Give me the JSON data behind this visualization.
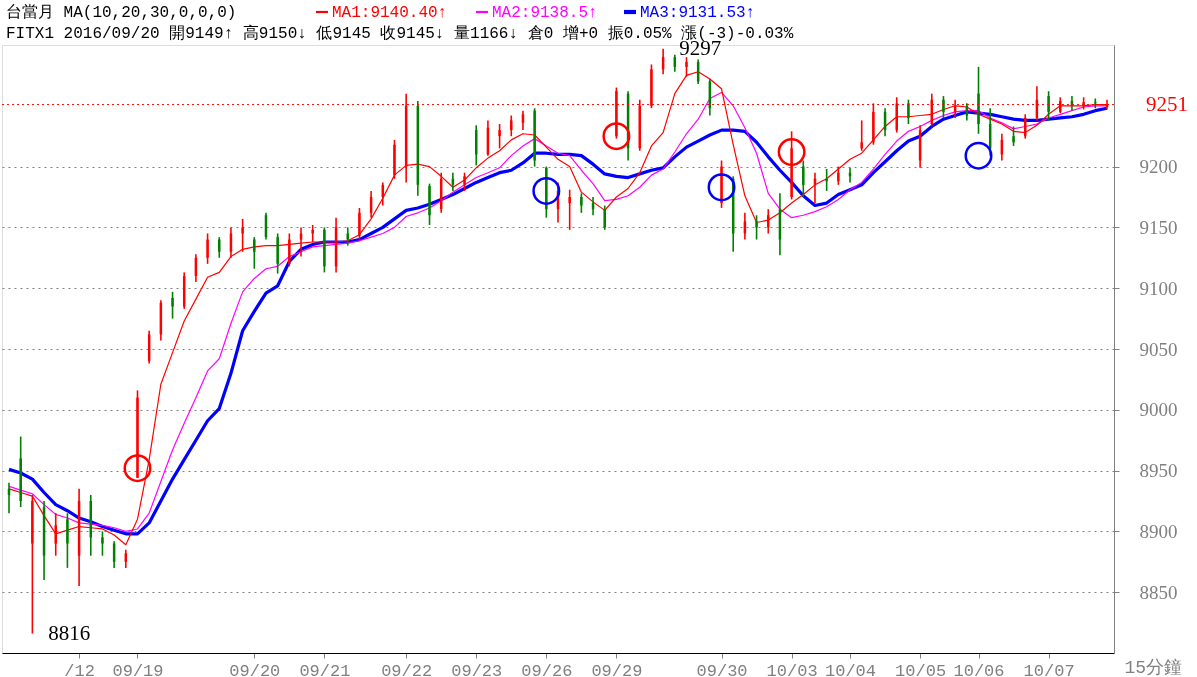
{
  "chart_data": {
    "type": "candlestick",
    "title": "台當月 MA(10,20,30,0,0,0)",
    "subtitle": "FITX1 2016/09/20 開9149↑ 高9150↓ 低9145 收9145↓ 量1166↓ 倉0 增+0 振0.05% 漲(-3)-0.03%",
    "xlabel": "15分鐘",
    "categories": [
      null,
      null,
      null,
      null,
      null,
      null,
      "/12",
      null,
      null,
      null,
      null,
      "09/19",
      null,
      null,
      null,
      null,
      null,
      null,
      null,
      null,
      null,
      "09/20",
      null,
      null,
      null,
      null,
      null,
      "09/21",
      null,
      null,
      null,
      null,
      null,
      null,
      "09/22",
      null,
      null,
      null,
      null,
      null,
      "09/23",
      null,
      null,
      null,
      null,
      null,
      "09/26",
      null,
      null,
      null,
      null,
      null,
      "09/29",
      null,
      null,
      null,
      null,
      null,
      null,
      null,
      null,
      "09/30",
      null,
      null,
      null,
      null,
      null,
      "10/03",
      null,
      null,
      null,
      null,
      "10/04",
      null,
      null,
      null,
      null,
      null,
      "10/05",
      null,
      null,
      null,
      null,
      "10/06",
      null,
      null,
      null,
      null,
      null,
      "10/07",
      null,
      null,
      null,
      null,
      null
    ],
    "ohlc": [
      [
        8935,
        8940,
        8915,
        8930
      ],
      [
        8960,
        8978,
        8920,
        8925
      ],
      [
        8890,
        8930,
        8816,
        8925
      ],
      [
        8920,
        8925,
        8860,
        8880
      ],
      [
        8890,
        8915,
        8880,
        8905
      ],
      [
        8910,
        8915,
        8870,
        8890
      ],
      [
        8880,
        8935,
        8855,
        8925
      ],
      [
        8925,
        8930,
        8880,
        8895
      ],
      [
        8895,
        8900,
        8880,
        8890
      ],
      [
        8890,
        8892,
        8870,
        8875
      ],
      [
        8875,
        8885,
        8870,
        8882
      ],
      [
        8944,
        9016,
        8944,
        9010
      ],
      [
        9040,
        9065,
        9038,
        9062
      ],
      [
        9062,
        9090,
        9057,
        9088
      ],
      [
        9092,
        9097,
        9075,
        9085
      ],
      [
        9085,
        9113,
        9083,
        9110
      ],
      [
        9110,
        9128,
        9105,
        9125
      ],
      [
        9125,
        9145,
        9120,
        9140
      ],
      [
        9140,
        9142,
        9125,
        9130
      ],
      [
        9130,
        9150,
        9125,
        9145
      ],
      [
        9145,
        9157,
        9130,
        9150
      ],
      [
        9140,
        9142,
        9116,
        9130
      ],
      [
        9160,
        9162,
        9140,
        9142
      ],
      [
        9142,
        9145,
        9112,
        9120
      ],
      [
        9120,
        9145,
        9118,
        9140
      ],
      [
        9140,
        9150,
        9126,
        9145
      ],
      [
        9145,
        9152,
        9138,
        9148
      ],
      [
        9148,
        9150,
        9113,
        9118
      ],
      [
        9118,
        9158,
        9113,
        9150
      ],
      [
        9145,
        9150,
        9135,
        9140
      ],
      [
        9143,
        9166,
        9140,
        9162
      ],
      [
        9162,
        9180,
        9158,
        9175
      ],
      [
        9175,
        9187,
        9168,
        9185
      ],
      [
        9193,
        9222,
        9190,
        9218
      ],
      [
        9200,
        9260,
        9187,
        9250
      ],
      [
        9250,
        9254,
        9176,
        9185
      ],
      [
        9184,
        9186,
        9152,
        9160
      ],
      [
        9165,
        9195,
        9162,
        9190
      ],
      [
        9190,
        9195,
        9180,
        9185
      ],
      [
        9185,
        9195,
        9180,
        9192
      ],
      [
        9230,
        9234,
        9201,
        9210
      ],
      [
        9210,
        9238,
        9209,
        9232
      ],
      [
        9225,
        9235,
        9215,
        9230
      ],
      [
        9230,
        9242,
        9225,
        9238
      ],
      [
        9236,
        9246,
        9230,
        9243
      ],
      [
        9246,
        9248,
        9200,
        9205
      ],
      [
        9199,
        9200,
        9158,
        9165
      ],
      [
        9165,
        9187,
        9154,
        9180
      ],
      [
        9170,
        9181,
        9148,
        9175
      ],
      [
        9175,
        9178,
        9162,
        9168
      ],
      [
        9170,
        9175,
        9160,
        9165
      ],
      [
        9165,
        9168,
        9148,
        9150
      ],
      [
        9225,
        9265,
        9223,
        9262
      ],
      [
        9260,
        9262,
        9205,
        9215
      ],
      [
        9215,
        9255,
        9213,
        9250
      ],
      [
        9250,
        9284,
        9248,
        9280
      ],
      [
        9280,
        9297,
        9276,
        9290
      ],
      [
        9290,
        9292,
        9278,
        9282
      ],
      [
        9282,
        9290,
        9274,
        9286
      ],
      [
        9286,
        9288,
        9268,
        9270
      ],
      [
        9270,
        9272,
        9242,
        9248
      ],
      [
        9170,
        9205,
        9166,
        9200
      ],
      [
        9190,
        9192,
        9130,
        9145
      ],
      [
        9145,
        9162,
        9140,
        9155
      ],
      [
        9155,
        9160,
        9140,
        9150
      ],
      [
        9150,
        9165,
        9145,
        9160
      ],
      [
        9165,
        9178,
        9127,
        9140
      ],
      [
        9175,
        9229,
        9173,
        9215
      ],
      [
        9200,
        9205,
        9175,
        9185
      ],
      [
        9185,
        9195,
        9170,
        9190
      ],
      [
        9190,
        9198,
        9180,
        9188
      ],
      [
        9188,
        9200,
        9185,
        9195
      ],
      [
        9195,
        9199,
        9187,
        9192
      ],
      [
        9215,
        9238,
        9213,
        9220
      ],
      [
        9220,
        9252,
        9218,
        9245
      ],
      [
        9245,
        9248,
        9225,
        9230
      ],
      [
        9230,
        9257,
        9228,
        9252
      ],
      [
        9252,
        9255,
        9235,
        9240
      ],
      [
        9205,
        9234,
        9199,
        9230
      ],
      [
        9235,
        9260,
        9233,
        9255
      ],
      [
        9255,
        9258,
        9240,
        9245
      ],
      [
        9245,
        9255,
        9240,
        9250
      ],
      [
        9250,
        9252,
        9238,
        9242
      ],
      [
        9260,
        9282,
        9227,
        9235
      ],
      [
        9235,
        9248,
        9209,
        9215
      ],
      [
        9210,
        9227,
        9205,
        9222
      ],
      [
        9225,
        9233,
        9217,
        9220
      ],
      [
        9225,
        9243,
        9223,
        9240
      ],
      [
        9240,
        9266,
        9238,
        9255
      ],
      [
        9258,
        9262,
        9238,
        9245
      ],
      [
        9245,
        9257,
        9244,
        9254
      ],
      [
        9254,
        9258,
        9246,
        9250
      ],
      [
        9250,
        9257,
        9247,
        9253
      ],
      [
        9253,
        9256,
        9248,
        9252
      ],
      [
        9249,
        9255,
        9247,
        9251
      ]
    ],
    "colors": [
      "#008000",
      "#008000",
      "#ff0000",
      "#008000",
      "#ff0000",
      "#008000",
      "#ff0000",
      "#008000",
      "#008000",
      "#008000",
      "#ff0000",
      "#ff0000",
      "#ff0000",
      "#ff0000",
      "#008000",
      "#ff0000",
      "#ff0000",
      "#ff0000",
      "#008000",
      "#ff0000",
      "#ff0000",
      "#008000",
      "#008000",
      "#008000",
      "#ff0000",
      "#ff0000",
      "#ff0000",
      "#008000",
      "#ff0000",
      "#008000",
      "#ff0000",
      "#ff0000",
      "#ff0000",
      "#ff0000",
      "#ff0000",
      "#008000",
      "#008000",
      "#ff0000",
      "#008000",
      "#ff0000",
      "#008000",
      "#ff0000",
      "#ff0000",
      "#ff0000",
      "#ff0000",
      "#008000",
      "#008000",
      "#ff0000",
      "#ff0000",
      "#008000",
      "#008000",
      "#008000",
      "#ff0000",
      "#008000",
      "#ff0000",
      "#ff0000",
      "#ff0000",
      "#008000",
      "#ff0000",
      "#008000",
      "#008000",
      "#ff0000",
      "#008000",
      "#ff0000",
      "#008000",
      "#ff0000",
      "#008000",
      "#ff0000",
      "#008000",
      "#ff0000",
      "#008000",
      "#ff0000",
      "#008000",
      "#ff0000",
      "#ff0000",
      "#008000",
      "#ff0000",
      "#008000",
      "#ff0000",
      "#ff0000",
      "#008000",
      "#ff0000",
      "#008000",
      "#008000",
      "#008000",
      "#ff0000",
      "#008000",
      "#ff0000",
      "#ff0000",
      "#008000",
      "#ff0000",
      "#008000",
      "#ff0000",
      "#008000",
      "#ff0000"
    ],
    "series": [
      {
        "name": "MA1:9140.40↑",
        "type": "line",
        "color": "#ff0000",
        "values": [
          8935,
          8932,
          8929,
          8913,
          8898,
          8901,
          8904,
          8903,
          8902,
          8897,
          8889,
          8910,
          8959,
          9021,
          9047,
          9073,
          9091,
          9109,
          9113,
          9126,
          9132,
          9134,
          9135,
          9135,
          9136,
          9137,
          9138,
          null,
          9138,
          9139,
          9144,
          9157,
          9174,
          9193,
          9201,
          9202,
          9200,
          9192,
          9183,
          9189,
          9199,
          9207,
          9213,
          9222,
          9227,
          9226,
          9216,
          9206,
          9200,
          9179,
          9171,
          9164,
          9175,
          9182,
          9195,
          9217,
          9228,
          9260,
          9275,
          9278,
          9272,
          9264,
          9218,
          9176,
          9154,
          9156,
          9162,
          9170,
          9177,
          9185,
          9190,
          9198,
          9206,
          9211,
          9222,
          9233,
          9241,
          9241,
          9242,
          9243,
          9247,
          9250,
          9249,
          9243,
          9239,
          9235,
          9229,
          9228,
          9234,
          9243,
          9250,
          9250,
          9250,
          9251,
          9251
        ]
      },
      {
        "name": "MA2:9138.5↑",
        "type": "line",
        "color": "#ff00ff",
        "values": [
          8937,
          8934,
          8931,
          8922,
          8914,
          8911,
          8907,
          8906,
          8905,
          8903,
          8900,
          8902,
          8915,
          8941,
          8967,
          8989,
          9010,
          9032,
          9042,
          9071,
          9097,
          9108,
          9116,
          9118,
          9126,
          9130,
          9134,
          9135,
          9136,
          9137,
          9139,
          9142,
          9145,
          9150,
          9159,
          9162,
          9166,
          9172,
          9179,
          9185,
          9191,
          9195,
          9199,
          9209,
          9217,
          9223,
          9217,
          9211,
          9209,
          9197,
          9186,
          9172,
          9173,
          9176,
          9183,
          9193,
          9198,
          9212,
          9227,
          9239,
          9256,
          9261,
          9250,
          9232,
          9211,
          9178,
          9165,
          9158,
          9160,
          9163,
          9167,
          9173,
          9181,
          9187,
          9198,
          9210,
          9221,
          9229,
          9233,
          9238,
          9242,
          9245,
          9246,
          9246,
          9240,
          9236,
          9231,
          9233,
          9235,
          9240,
          9243,
          9246,
          9249,
          9250,
          9250
        ]
      },
      {
        "name": "MA3:9131.53↑",
        "type": "line",
        "color": "#0000ff",
        "values": [
          8951,
          8948,
          8943,
          8932,
          8922,
          8917,
          8911,
          8908,
          8904,
          8901,
          8898,
          8898,
          8907,
          8925,
          8943,
          8959,
          8975,
          8991,
          9001,
          9030,
          9065,
          9081,
          9096,
          9102,
          9122,
          9132,
          9136,
          9138,
          9138,
          9138,
          9140,
          9145,
          9150,
          9157,
          9164,
          9166,
          9169,
          9173,
          9177,
          9182,
          9187,
          9191,
          9195,
          9197,
          9203,
          9211,
          9211,
          9210,
          9210,
          9209,
          9202,
          9194,
          9192,
          9191,
          9194,
          9197,
          9199,
          9208,
          9216,
          9221,
          9226,
          9230,
          9230,
          9229,
          9220,
          9208,
          9197,
          9187,
          9176,
          9168,
          9170,
          9177,
          9181,
          9185,
          9195,
          9204,
          9213,
          9221,
          9225,
          9233,
          9239,
          9242,
          9245,
          9244,
          9243,
          9241,
          9239,
          9238,
          9238,
          9239,
          9240,
          9241,
          9243,
          9246,
          9248
        ]
      },
      {
        "type": "scatter",
        "marker": "circle",
        "color": "#ff0000",
        "values": [
          null,
          null,
          null,
          null,
          null,
          null,
          null,
          null,
          null,
          null,
          null,
          8952,
          null,
          null,
          null,
          null,
          null,
          null,
          null,
          null,
          null,
          null,
          null,
          null,
          null,
          null,
          null,
          null,
          null,
          null,
          null,
          null,
          null,
          null,
          null,
          null,
          null,
          null,
          null,
          null,
          null,
          null,
          null,
          null,
          null,
          null,
          null,
          null,
          null,
          null,
          null,
          null,
          9225,
          null,
          null,
          null,
          null,
          null,
          null,
          null,
          null,
          null,
          null,
          null,
          null,
          null,
          null,
          9212,
          null,
          null,
          null,
          null,
          null,
          null,
          null,
          null,
          null,
          null,
          null,
          null,
          null,
          null,
          null,
          null,
          null,
          null,
          null,
          null,
          null,
          null,
          null,
          null,
          null,
          null,
          null
        ]
      },
      {
        "type": "scatter",
        "marker": "circle",
        "color": "#0000ff",
        "values": [
          null,
          null,
          null,
          null,
          null,
          null,
          null,
          null,
          null,
          null,
          null,
          null,
          null,
          null,
          null,
          null,
          null,
          null,
          null,
          null,
          null,
          null,
          null,
          null,
          null,
          null,
          null,
          null,
          null,
          null,
          null,
          null,
          null,
          null,
          null,
          null,
          null,
          null,
          null,
          null,
          null,
          null,
          null,
          null,
          null,
          null,
          9180,
          null,
          null,
          null,
          null,
          null,
          null,
          null,
          null,
          null,
          null,
          null,
          null,
          null,
          null,
          9183,
          null,
          null,
          null,
          null,
          null,
          null,
          null,
          null,
          null,
          null,
          null,
          null,
          null,
          null,
          null,
          null,
          null,
          null,
          null,
          null,
          null,
          9209,
          null,
          null,
          null,
          null,
          null,
          null,
          null,
          null,
          null,
          null,
          null
        ]
      }
    ],
    "ylim": [
      8800,
      9300
    ],
    "yticks": [
      8850,
      8900,
      8950,
      9000,
      9050,
      9100,
      9150,
      9200
    ],
    "ref_lines": [
      {
        "axis": "y",
        "value": 9251,
        "label": "9251",
        "color": "#ff0000",
        "line_style": "dotted"
      }
    ],
    "annotations": [
      "8816",
      "9297"
    ],
    "grid": "y",
    "legend": "top"
  }
}
